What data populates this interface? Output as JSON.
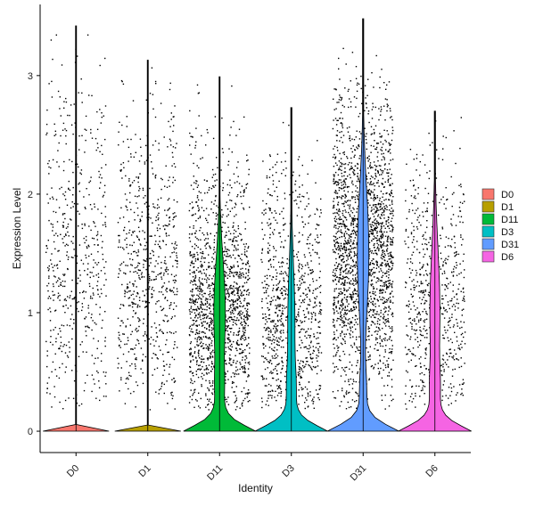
{
  "chart_data": {
    "type": "violin",
    "xlabel": "Identity",
    "ylabel": "Expression Level",
    "categories": [
      "D0",
      "D1",
      "D11",
      "D3",
      "D31",
      "D6"
    ],
    "ylim": [
      -0.18,
      3.6
    ],
    "yticks": [
      0,
      1,
      2,
      3
    ],
    "legend": {
      "position": "right",
      "entries": [
        "D0",
        "D1",
        "D11",
        "D3",
        "D31",
        "D6"
      ]
    },
    "colors": {
      "D0": "#F8766D",
      "D1": "#B79F00",
      "D11": "#00BA38",
      "D3": "#00BFC4",
      "D31": "#619CFF",
      "D6": "#F564E3"
    },
    "series": [
      {
        "name": "D0",
        "max": 3.42,
        "point_density": 0.35,
        "point_center": 1.4,
        "point_spread": 0.7,
        "violin_zero_width": 0.03,
        "violin_upper_width": 0.0
      },
      {
        "name": "D1",
        "max": 3.13,
        "point_density": 0.45,
        "point_center": 1.3,
        "point_spread": 0.65,
        "violin_zero_width": 0.03,
        "violin_upper_width": 0.0
      },
      {
        "name": "D11",
        "max": 2.99,
        "point_density": 1.0,
        "point_center": 1.0,
        "point_spread": 0.45,
        "violin_zero_width": 0.47,
        "violin_upper_width": 0.08
      },
      {
        "name": "D3",
        "max": 2.73,
        "point_density": 0.6,
        "point_center": 0.9,
        "point_spread": 0.5,
        "violin_zero_width": 0.45,
        "violin_upper_width": 0.05
      },
      {
        "name": "D31",
        "max": 3.48,
        "point_density": 1.4,
        "point_center": 1.5,
        "point_spread": 0.55,
        "violin_zero_width": 0.48,
        "violin_upper_width": 0.08
      },
      {
        "name": "D6",
        "max": 2.7,
        "point_density": 0.45,
        "point_center": 1.0,
        "point_spread": 0.55,
        "violin_zero_width": 0.47,
        "violin_upper_width": 0.07
      }
    ]
  }
}
